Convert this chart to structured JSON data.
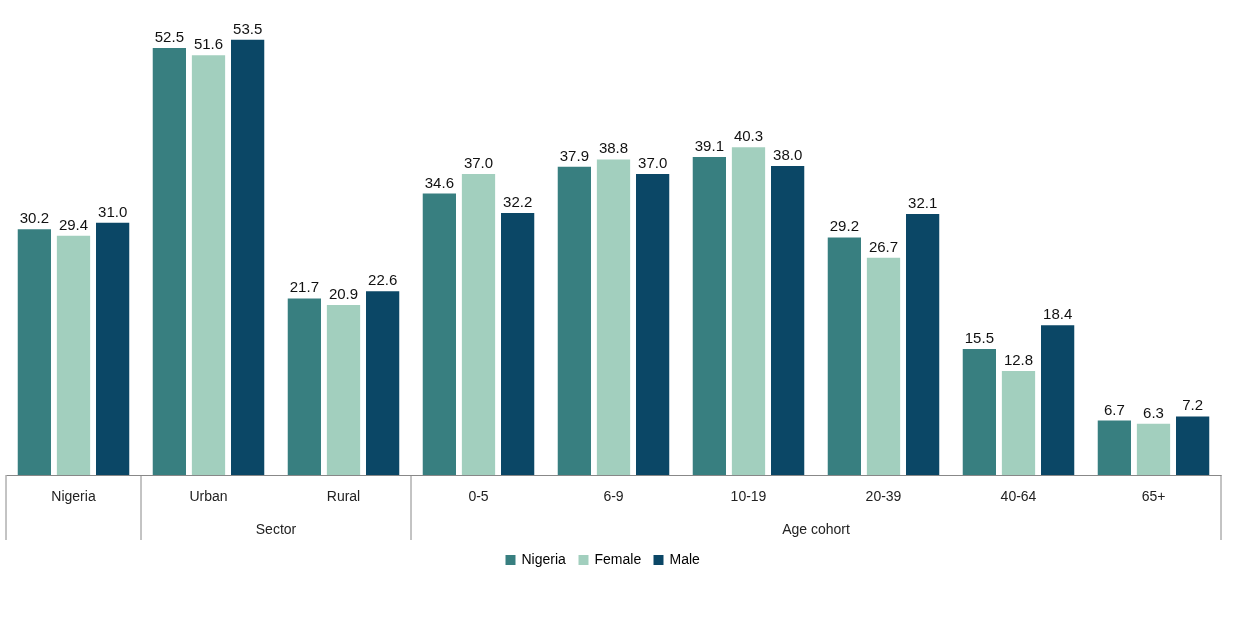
{
  "chart_data": {
    "type": "bar",
    "categories": [
      "Nigeria",
      "Urban",
      "Rural",
      "0-5",
      "6-9",
      "10-19",
      "20-39",
      "40-64",
      "65+"
    ],
    "series": [
      {
        "name": "Nigeria",
        "color": "#387f80",
        "values": [
          30.2,
          52.5,
          21.7,
          34.6,
          37.9,
          39.1,
          29.2,
          15.5,
          6.7
        ],
        "value_labels": [
          "30.2",
          "52.5",
          "21.7",
          "34.6",
          "37.9",
          "39.1",
          "29.2",
          "15.5",
          "6.7"
        ]
      },
      {
        "name": "Female",
        "color": "#a2cfbe",
        "values": [
          29.4,
          51.6,
          20.9,
          37.0,
          38.8,
          40.3,
          26.7,
          12.8,
          6.3
        ],
        "value_labels": [
          "29.4",
          "51.6",
          "20.9",
          "37.0",
          "38.8",
          "40.3",
          "26.7",
          "12.8",
          "6.3"
        ]
      },
      {
        "name": "Male",
        "color": "#0b4766",
        "values": [
          31.0,
          53.5,
          22.6,
          32.2,
          37.0,
          38.0,
          32.1,
          18.4,
          7.2
        ],
        "value_labels": [
          "31.0",
          "53.5",
          "22.6",
          "32.2",
          "37.0",
          "38.0",
          "32.1",
          "18.4",
          "7.2"
        ]
      }
    ],
    "annotations": [
      "Sector",
      "Age cohort"
    ],
    "tick_labels": "x",
    "grid": false,
    "legend": "bottom"
  }
}
